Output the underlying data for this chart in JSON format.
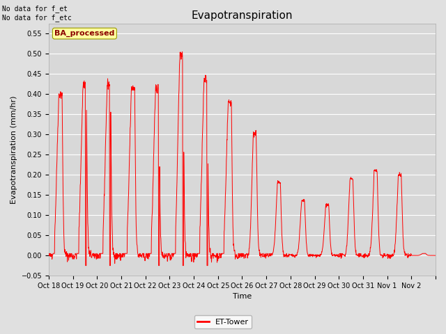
{
  "title": "Evapotranspiration",
  "ylabel": "Evapotranspiration (mm/hr)",
  "xlabel": "Time",
  "top_left_text": "No data for f_et\nNo data for f_etc",
  "watermark_text": "BA_processed",
  "legend_label": "ET-Tower",
  "ylim": [
    -0.05,
    0.575
  ],
  "yticks": [
    -0.05,
    0.0,
    0.05,
    0.1,
    0.15,
    0.2,
    0.25,
    0.3,
    0.35,
    0.4,
    0.45,
    0.5,
    0.55
  ],
  "xtick_labels": [
    "Oct 18",
    "Oct 19",
    "Oct 20",
    "Oct 21",
    "Oct 22",
    "Oct 23",
    "Oct 24",
    "Oct 25",
    "Oct 26",
    "Oct 27",
    "Oct 28",
    "Oct 29",
    "Oct 30",
    "Oct 31",
    "Nov 1",
    "Nov 2"
  ],
  "line_color": "#FF0000",
  "bg_color": "#E0E0E0",
  "plot_bg_color": "#D8D8D8",
  "grid_color": "#FFFFFF",
  "title_fontsize": 11,
  "axis_label_fontsize": 8,
  "tick_fontsize": 7,
  "n_days": 16,
  "pts_per_day": 96
}
